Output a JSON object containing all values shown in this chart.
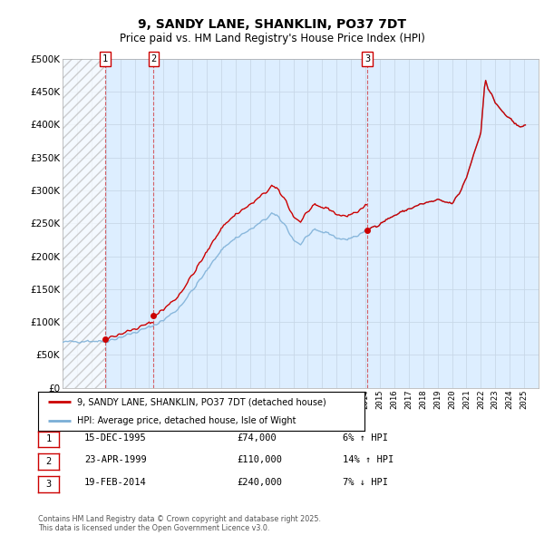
{
  "title1": "9, SANDY LANE, SHANKLIN, PO37 7DT",
  "title2": "Price paid vs. HM Land Registry's House Price Index (HPI)",
  "legend1": "9, SANDY LANE, SHANKLIN, PO37 7DT (detached house)",
  "legend2": "HPI: Average price, detached house, Isle of Wight",
  "footer": "Contains HM Land Registry data © Crown copyright and database right 2025.\nThis data is licensed under the Open Government Licence v3.0.",
  "sales": [
    {
      "num": 1,
      "date": "15-DEC-1995",
      "year": 1995.96,
      "price": 74000,
      "pct": "6%",
      "dir": "↑"
    },
    {
      "num": 2,
      "date": "23-APR-1999",
      "year": 1999.31,
      "price": 110000,
      "pct": "14%",
      "dir": "↑"
    },
    {
      "num": 3,
      "date": "19-FEB-2014",
      "year": 2014.13,
      "price": 240000,
      "pct": "7%",
      "dir": "↓"
    }
  ],
  "ylim": [
    0,
    500000
  ],
  "yticks": [
    0,
    50000,
    100000,
    150000,
    200000,
    250000,
    300000,
    350000,
    400000,
    450000,
    500000
  ],
  "xstart": 1993,
  "xend": 2026,
  "red_color": "#cc0000",
  "blue_color": "#7aaed6",
  "hatch_color": "#cccccc",
  "grid_color": "#c8d8e8",
  "plot_bg_color": "#ddeeff",
  "bg_color": "#ffffff"
}
